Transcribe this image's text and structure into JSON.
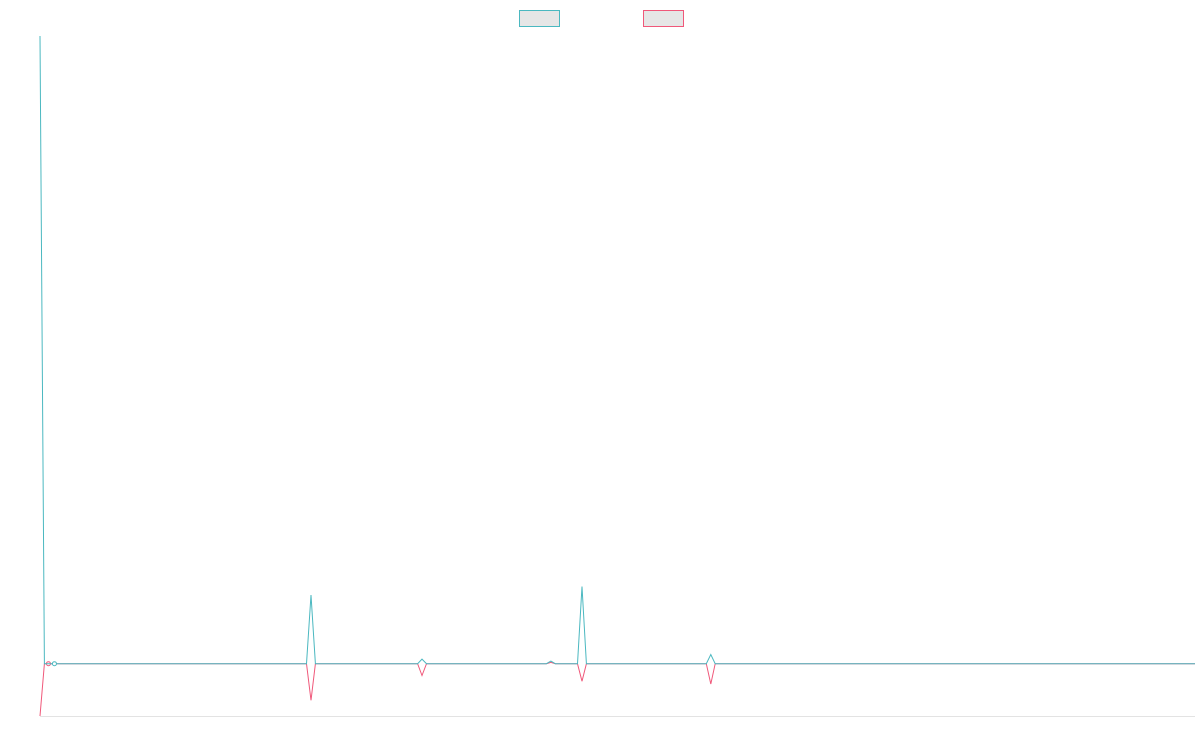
{
  "chart_data": {
    "type": "line",
    "title": "",
    "xlabel": "",
    "ylabel": "",
    "legend": {
      "position": "top-center",
      "entries": [
        {
          "name": "",
          "color": "#4bb8c0"
        },
        {
          "name": "",
          "color": "#f0587a"
        }
      ]
    },
    "grid": false,
    "x": [
      0,
      1,
      2,
      60,
      61,
      62,
      85,
      86,
      87,
      114,
      115,
      116,
      121,
      122,
      123,
      150,
      151,
      152,
      260
    ],
    "xlim": [
      0,
      260
    ],
    "ylim": [
      -8,
      96
    ],
    "series": [
      {
        "color": "#4bb8c0",
        "values": [
          96,
          0,
          0,
          0,
          10.5,
          0,
          0,
          0.7,
          0,
          0,
          0.4,
          0,
          0,
          11.8,
          0,
          0,
          1.4,
          0,
          0
        ]
      },
      {
        "color": "#f0587a",
        "values": [
          -8,
          0,
          0,
          0,
          -5.6,
          0,
          0,
          -1.8,
          0,
          0,
          0.2,
          0,
          0,
          -2.7,
          0,
          0,
          -3.1,
          0,
          0
        ]
      }
    ]
  }
}
